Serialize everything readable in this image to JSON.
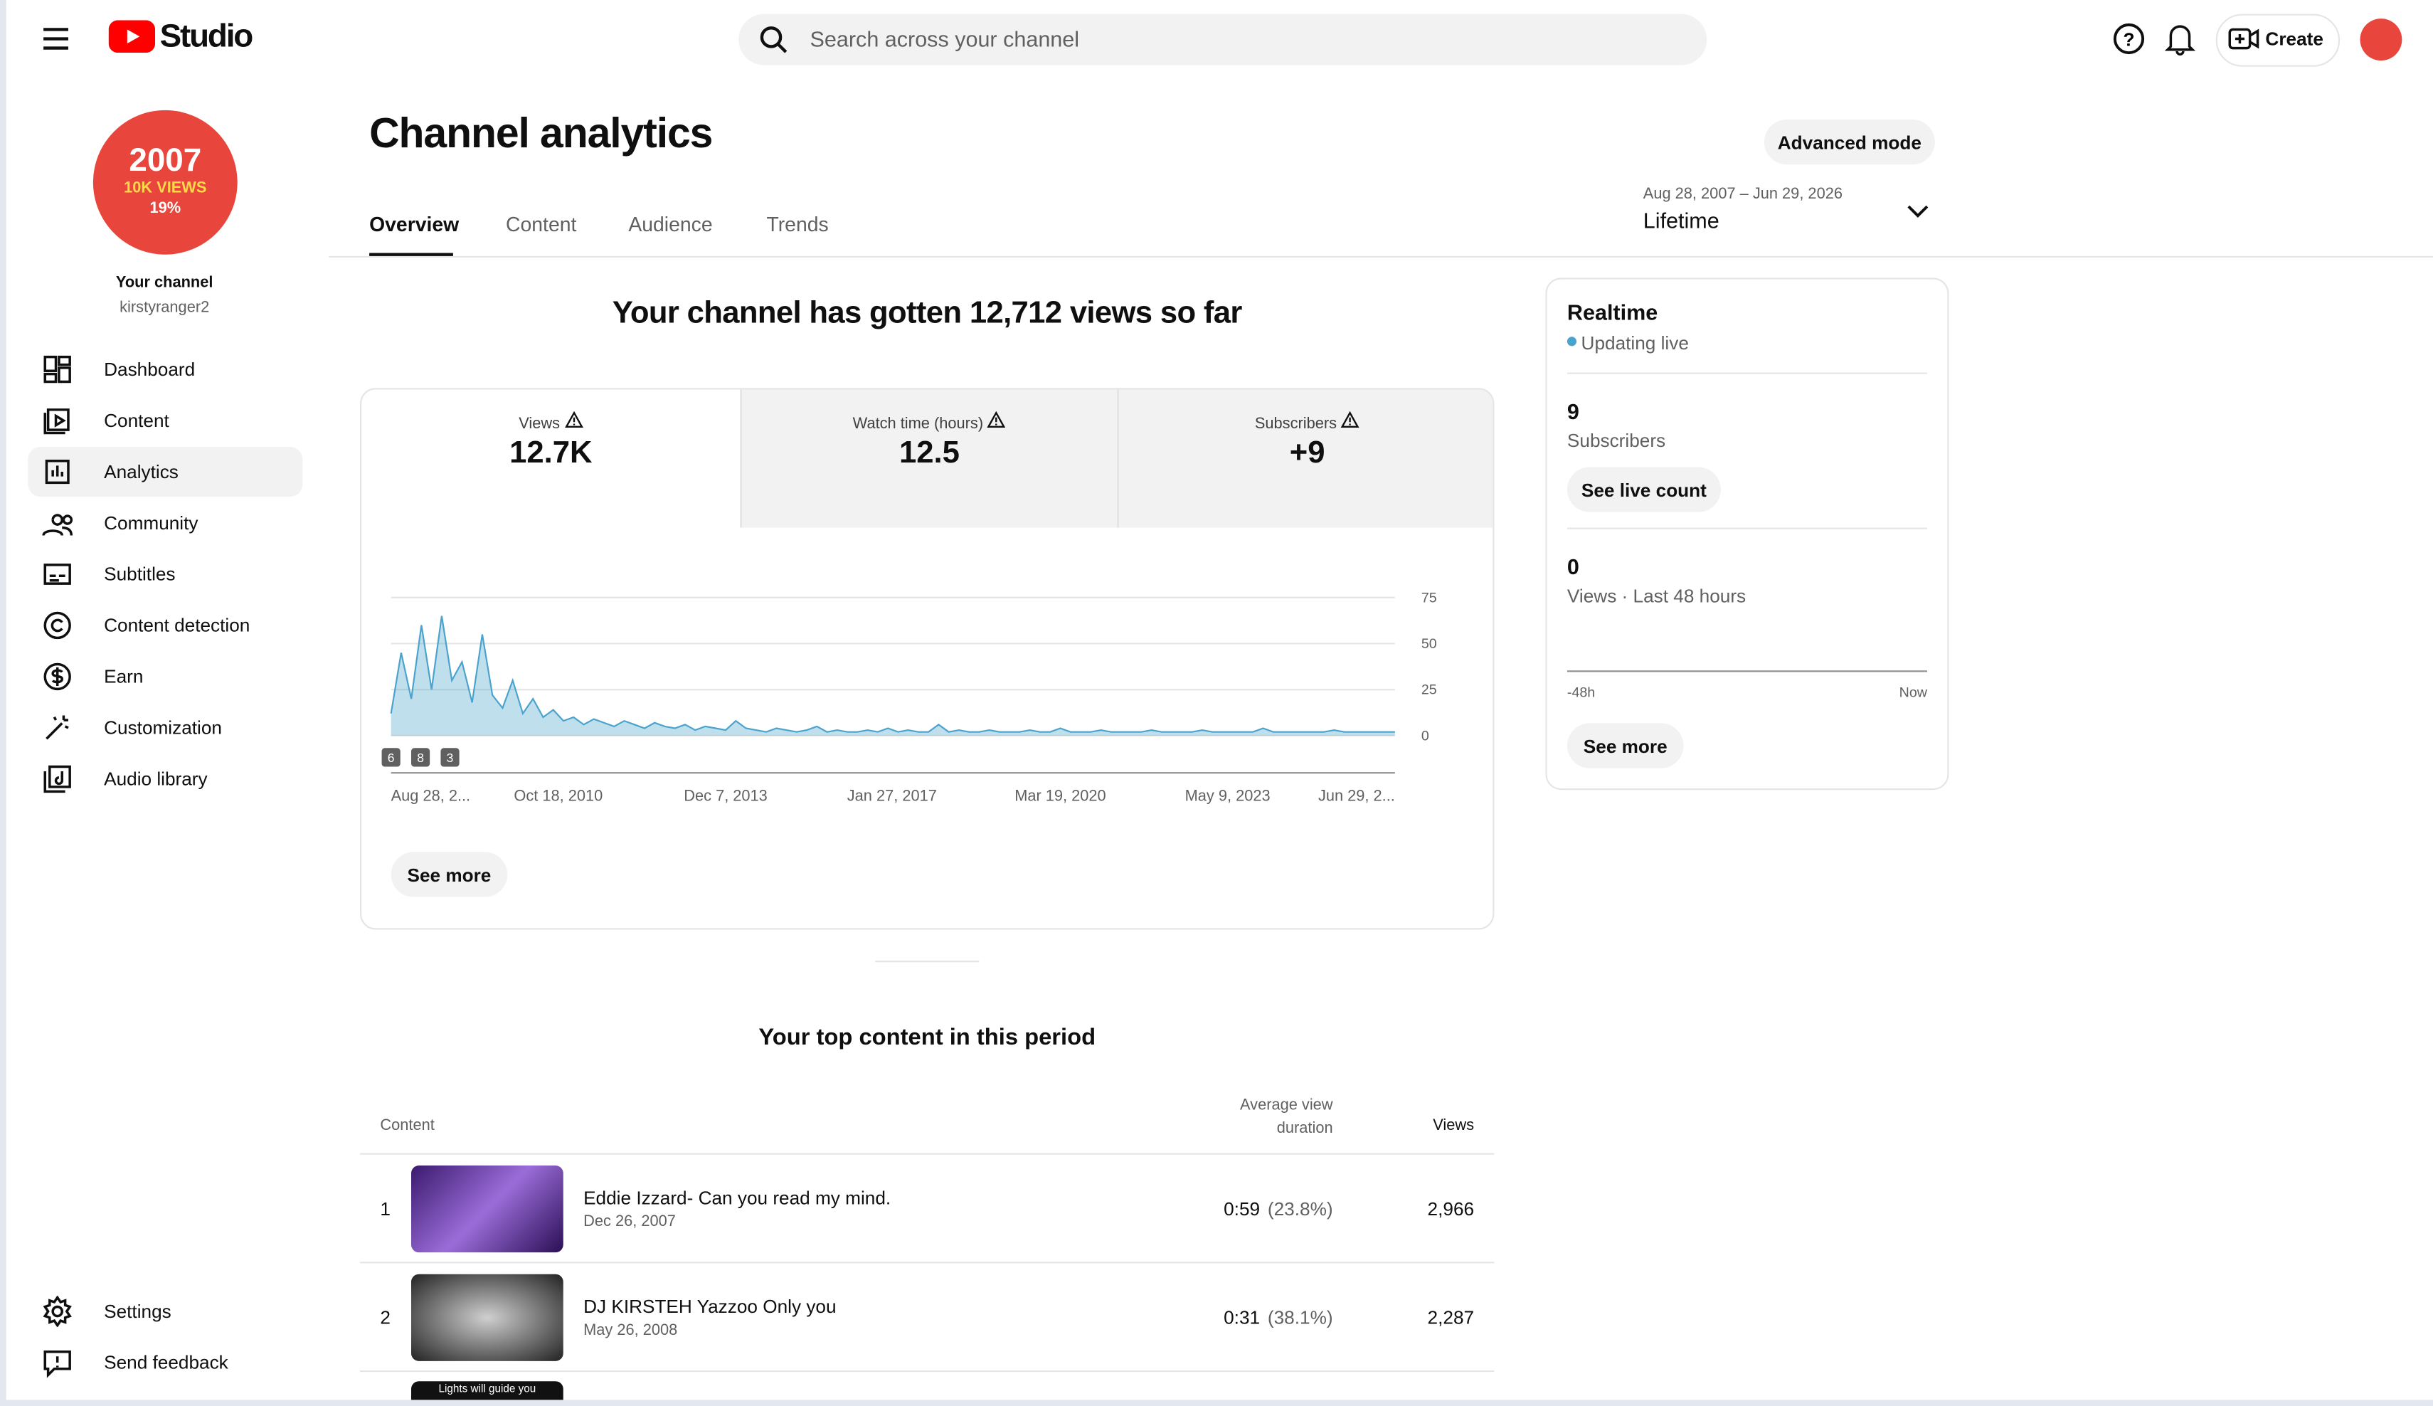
{
  "header": {
    "brand": "Studio",
    "search_placeholder": "Search across your channel",
    "create": "Create"
  },
  "sidebar": {
    "avatar": {
      "year": "2007",
      "views": "10K VIEWS",
      "share": "19%"
    },
    "channel_label": "Your channel",
    "handle": "kirstyranger2",
    "nav": [
      "Dashboard",
      "Content",
      "Analytics",
      "Community",
      "Subtitles",
      "Content detection",
      "Earn",
      "Customization",
      "Audio library"
    ],
    "footer_nav": [
      "Settings",
      "Send feedback"
    ]
  },
  "main": {
    "title": "Channel analytics",
    "advanced_mode": "Advanced mode",
    "tabs": [
      "Overview",
      "Content",
      "Audience",
      "Trends"
    ],
    "date_range": {
      "range": "Aug 28, 2007 – Jun 29, 2026",
      "label": "Lifetime"
    },
    "headline": "Your channel has gotten 12,712 views so far",
    "metrics": [
      {
        "label": "Views",
        "value": "12.7K"
      },
      {
        "label": "Watch time (hours)",
        "value": "12.5"
      },
      {
        "label": "Subscribers",
        "value": "+9"
      }
    ],
    "see_more": "See more"
  },
  "chart_data": {
    "type": "line",
    "color": "#4aa3cc",
    "grid": true,
    "xlim": [
      0,
      99
    ],
    "ylim": [
      0,
      75
    ],
    "yticks": [
      0,
      25,
      50,
      75
    ],
    "xticks": [
      {
        "value": 0,
        "label": "Aug 28, 2..."
      },
      {
        "value": 16.5,
        "label": "Oct 18, 2010"
      },
      {
        "value": 33,
        "label": "Dec 7, 2013"
      },
      {
        "value": 49.4,
        "label": "Jan 27, 2017"
      },
      {
        "value": 66,
        "label": "Mar 19, 2020"
      },
      {
        "value": 82.5,
        "label": "May 9, 2023"
      },
      {
        "value": 99,
        "label": "Jun 29, 2..."
      }
    ],
    "markers": [
      6,
      8,
      3
    ],
    "values": [
      12,
      45,
      20,
      60,
      25,
      65,
      30,
      40,
      18,
      55,
      22,
      15,
      30,
      12,
      20,
      10,
      14,
      8,
      10,
      6,
      9,
      7,
      5,
      8,
      6,
      4,
      7,
      5,
      4,
      6,
      3,
      5,
      4,
      3,
      8,
      4,
      3,
      2,
      4,
      3,
      2,
      3,
      5,
      2,
      3,
      2,
      2,
      3,
      2,
      4,
      2,
      3,
      2,
      2,
      6,
      2,
      3,
      2,
      2,
      3,
      2,
      2,
      2,
      3,
      2,
      2,
      4,
      2,
      2,
      2,
      3,
      2,
      2,
      2,
      2,
      3,
      2,
      2,
      2,
      2,
      3,
      2,
      2,
      2,
      2,
      2,
      4,
      2,
      2,
      2,
      2,
      2,
      2,
      3,
      2,
      2,
      2,
      2,
      2,
      2
    ]
  },
  "top_content": {
    "title": "Your top content in this period",
    "columns": [
      "Content",
      "Average view duration",
      "Views"
    ],
    "rows": [
      {
        "rank": 1,
        "title": "Eddie Izzard- Can you read my mind.",
        "date": "Dec 26, 2007",
        "duration": "0:59",
        "percent": "(23.8%)",
        "views": "2,966"
      },
      {
        "rank": 2,
        "title": "DJ KIRSTEH Yazzoo Only you",
        "date": "May 26, 2008",
        "duration": "0:31",
        "percent": "(38.1%)",
        "views": "2,287"
      }
    ],
    "partial_thumbnail_text": "Lights will guide you"
  },
  "realtime": {
    "title": "Realtime",
    "status": "Updating live",
    "subscribers": 9,
    "subscribers_label": "Subscribers",
    "live_count": "See live count",
    "views": 0,
    "views_label": "Views · Last 48 hours",
    "axis_start": "-48h",
    "axis_end": "Now",
    "see_more": "See more"
  }
}
